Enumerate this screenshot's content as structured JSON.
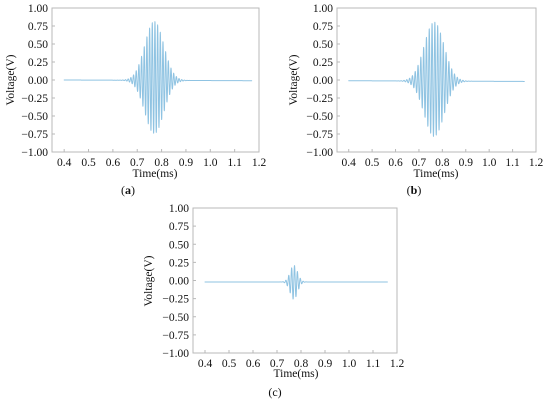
{
  "figure": {
    "colors": {
      "signal": "#8fc3e2",
      "frame": "#b9b9b9",
      "text": "#111111"
    },
    "caption_parts": [
      "(",
      ")"
    ]
  },
  "chart_data": [
    {
      "type": "line",
      "caption_letter": "a",
      "xlabel": "Time(ms)",
      "ylabel": "Voltage(V)",
      "xlim": [
        0.35,
        1.2
      ],
      "ylim": [
        -1.0,
        1.0
      ],
      "xticks": [
        0.4,
        0.5,
        0.6,
        0.7,
        0.8,
        0.9,
        1.0,
        1.1,
        1.2
      ],
      "xtick_labels": [
        "0.4",
        "0.5",
        "0.6",
        "0.7",
        "0.8",
        "0.9",
        "1.0",
        "1.1",
        "1.2"
      ],
      "yticks": [
        -1.0,
        -0.75,
        -0.5,
        -0.25,
        0.0,
        0.25,
        0.5,
        0.75,
        1.0
      ],
      "ytick_labels": [
        "−1.00",
        "−0.75",
        "−0.50",
        "−0.25",
        "0.00",
        "0.25",
        "0.50",
        "0.75",
        "1.00"
      ],
      "grid": false,
      "series": [
        {
          "t_start": 0.4,
          "t_end": 1.17,
          "baseline_start": 0.0,
          "baseline_end": -0.01,
          "burst_center": 0.77,
          "burst_halfwidth": 0.055,
          "peak_positive": 0.82,
          "peak_negative": -0.74,
          "cycles": 22
        }
      ]
    },
    {
      "type": "line",
      "caption_letter": "b",
      "xlabel": "Time(ms)",
      "ylabel": "Voltage(V)",
      "xlim": [
        0.35,
        1.2
      ],
      "ylim": [
        -1.0,
        1.0
      ],
      "xticks": [
        0.4,
        0.5,
        0.6,
        0.7,
        0.8,
        0.9,
        1.0,
        1.1,
        1.2
      ],
      "xtick_labels": [
        "0.4",
        "0.5",
        "0.6",
        "0.7",
        "0.8",
        "0.9",
        "1.0",
        "1.1",
        "1.2"
      ],
      "yticks": [
        -1.0,
        -0.75,
        -0.5,
        -0.25,
        0.0,
        0.25,
        0.5,
        0.75,
        1.0
      ],
      "ytick_labels": [
        "−1.00",
        "−0.75",
        "−0.50",
        "−0.25",
        "0.00",
        "0.25",
        "0.50",
        "0.75",
        "1.00"
      ],
      "grid": false,
      "series": [
        {
          "t_start": 0.4,
          "t_end": 1.15,
          "baseline_start": -0.01,
          "baseline_end": -0.02,
          "burst_center": 0.765,
          "burst_halfwidth": 0.06,
          "peak_positive": 0.82,
          "peak_negative": -0.77,
          "cycles": 22
        }
      ]
    },
    {
      "type": "line",
      "caption_letter": "c",
      "xlabel": "Time(ms)",
      "ylabel": "Voltage(V)",
      "xlim": [
        0.35,
        1.2
      ],
      "ylim": [
        -1.0,
        1.0
      ],
      "xticks": [
        0.4,
        0.5,
        0.6,
        0.7,
        0.8,
        0.9,
        1.0,
        1.1,
        1.2
      ],
      "xtick_labels": [
        "0.4",
        "0.5",
        "0.6",
        "0.7",
        "0.8",
        "0.9",
        "1.0",
        "1.1",
        "1.2"
      ],
      "yticks": [
        -1.0,
        -0.75,
        -0.5,
        -0.25,
        0.0,
        0.25,
        0.5,
        0.75,
        1.0
      ],
      "ytick_labels": [
        "−1.00",
        "−0.75",
        "−0.50",
        "−0.25",
        "0.00",
        "0.25",
        "0.50",
        "0.75",
        "1.00"
      ],
      "grid": false,
      "series": [
        {
          "t_start": 0.4,
          "t_end": 1.16,
          "baseline_start": -0.02,
          "baseline_end": -0.02,
          "burst_center": 0.77,
          "burst_halfwidth": 0.022,
          "peak_positive": 0.23,
          "peak_negative": -0.24,
          "cycles": 8
        }
      ]
    }
  ]
}
